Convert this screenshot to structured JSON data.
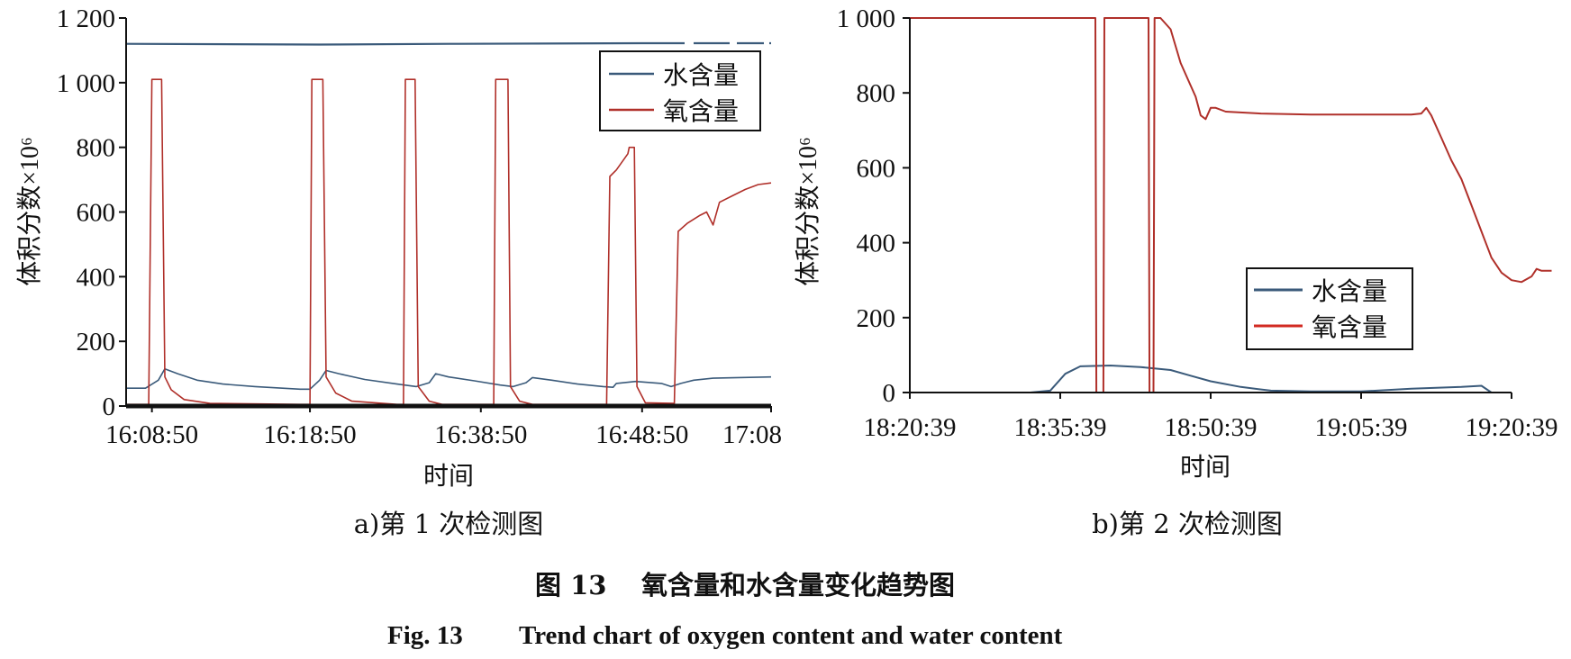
{
  "figure": {
    "caption_cn_num": "图 13",
    "caption_cn_text": "氧含量和水含量变化趋势图",
    "caption_en_num": "Fig. 13",
    "caption_en_text": "Trend chart of oxygen content and water content"
  },
  "colors": {
    "water": "#3a5a7a",
    "oxygen": "#b0302a",
    "axis": "#111111"
  },
  "chart_data": [
    {
      "type": "line",
      "subcaption": "a)第 1 次检测图",
      "xlabel": "时间",
      "ylabel": "体积分数×10⁶",
      "ylim": [
        0,
        1200
      ],
      "yticks": [
        0,
        200,
        400,
        600,
        800,
        1000,
        1200
      ],
      "ytick_labels": [
        "0",
        "200",
        "400",
        "600",
        "800",
        "1 000",
        "1 200"
      ],
      "xlim": [
        0,
        100
      ],
      "xtick_labels": [
        "16:08:50",
        "16:18:50",
        "16:38:50",
        "16:48:50",
        "17:08"
      ],
      "xtick_positions": [
        4,
        28.5,
        55,
        80,
        100
      ],
      "legend": {
        "placement": "top-right",
        "entries": [
          "水含量",
          "氧含量"
        ]
      },
      "series": [
        {
          "name": "水含量",
          "color_key": "water",
          "points": [
            [
              0,
              55
            ],
            [
              3,
              55
            ],
            [
              5,
              80
            ],
            [
              6,
              115
            ],
            [
              8,
              100
            ],
            [
              11,
              80
            ],
            [
              15,
              68
            ],
            [
              20,
              60
            ],
            [
              27,
              52
            ],
            [
              28.5,
              52
            ],
            [
              30,
              80
            ],
            [
              31,
              110
            ],
            [
              33,
              100
            ],
            [
              37,
              82
            ],
            [
              42,
              68
            ],
            [
              45,
              60
            ],
            [
              47,
              72
            ],
            [
              48,
              100
            ],
            [
              50,
              90
            ],
            [
              54,
              78
            ],
            [
              58,
              65
            ],
            [
              60,
              60
            ],
            [
              62,
              72
            ],
            [
              63,
              88
            ],
            [
              66,
              80
            ],
            [
              70,
              68
            ],
            [
              74,
              60
            ],
            [
              75.5,
              58
            ],
            [
              76,
              70
            ],
            [
              79,
              76
            ],
            [
              83,
              70
            ],
            [
              84.5,
              60
            ],
            [
              86,
              70
            ],
            [
              88,
              80
            ],
            [
              91,
              86
            ],
            [
              95,
              88
            ],
            [
              100,
              90
            ]
          ]
        },
        {
          "name": "氧含量",
          "color_key": "oxygen",
          "points": [
            [
              0,
              5
            ],
            [
              3.5,
              5
            ],
            [
              4,
              1010
            ],
            [
              5.5,
              1010
            ],
            [
              6,
              90
            ],
            [
              7,
              50
            ],
            [
              9,
              20
            ],
            [
              13,
              8
            ],
            [
              27,
              5
            ],
            [
              28.5,
              5
            ],
            [
              28.8,
              1010
            ],
            [
              30.5,
              1010
            ],
            [
              31,
              90
            ],
            [
              32.5,
              40
            ],
            [
              35,
              15
            ],
            [
              42,
              5
            ],
            [
              43,
              5
            ],
            [
              43.3,
              1010
            ],
            [
              44.8,
              1010
            ],
            [
              45.3,
              60
            ],
            [
              47,
              15
            ],
            [
              49,
              5
            ],
            [
              57,
              5
            ],
            [
              57.3,
              1010
            ],
            [
              59.2,
              1010
            ],
            [
              59.6,
              60
            ],
            [
              61,
              15
            ],
            [
              63,
              5
            ],
            [
              74.5,
              5
            ],
            [
              75,
              710
            ],
            [
              76,
              730
            ],
            [
              77.8,
              780
            ],
            [
              78,
              800
            ],
            [
              78.8,
              800
            ],
            [
              79.2,
              60
            ],
            [
              80.5,
              10
            ],
            [
              85,
              8
            ],
            [
              85.6,
              540
            ],
            [
              87,
              565
            ],
            [
              89,
              590
            ],
            [
              90,
              600
            ],
            [
              91,
              560
            ],
            [
              92,
              630
            ],
            [
              94,
              650
            ],
            [
              96,
              670
            ],
            [
              98,
              685
            ],
            [
              100,
              690
            ]
          ]
        },
        {
          "name": "",
          "color_key": "water",
          "note": "reference line near top",
          "points": [
            [
              0,
              1120
            ],
            [
              30,
              1118
            ],
            [
              50,
              1120
            ],
            [
              80,
              1122
            ],
            [
              100,
              1122
            ]
          ]
        }
      ]
    },
    {
      "type": "line",
      "subcaption": "b)第 2 次检测图",
      "xlabel": "时间",
      "ylabel": "体积分数×10⁶",
      "ylim": [
        0,
        1000
      ],
      "yticks": [
        0,
        200,
        400,
        600,
        800,
        1000
      ],
      "ytick_labels": [
        "0",
        "200",
        "400",
        "600",
        "800",
        "1 000"
      ],
      "xlim": [
        0,
        60
      ],
      "xtick_labels": [
        "18:20:39",
        "18:35:39",
        "18:50:39",
        "19:05:39",
        "19:20:39"
      ],
      "xtick_positions": [
        0,
        15,
        30,
        45,
        60
      ],
      "legend": {
        "placement": "bottom-right",
        "entries": [
          "水含量",
          "氧含量"
        ]
      },
      "series": [
        {
          "name": "水含量",
          "color_key": "water",
          "points": [
            [
              0,
              0
            ],
            [
              12,
              0
            ],
            [
              14,
              5
            ],
            [
              15.5,
              50
            ],
            [
              17,
              70
            ],
            [
              20,
              72
            ],
            [
              23,
              68
            ],
            [
              26,
              60
            ],
            [
              28,
              45
            ],
            [
              30,
              30
            ],
            [
              33,
              15
            ],
            [
              36,
              5
            ],
            [
              40,
              3
            ],
            [
              45,
              3
            ],
            [
              50,
              10
            ],
            [
              55,
              15
            ],
            [
              57,
              18
            ],
            [
              58,
              0
            ]
          ]
        },
        {
          "name": "氧含量",
          "color_key": "oxygen",
          "points": [
            [
              0,
              1000
            ],
            [
              18.5,
              1000
            ],
            [
              18.6,
              0
            ],
            [
              19.3,
              0
            ],
            [
              19.4,
              1000
            ],
            [
              23.8,
              1000
            ],
            [
              23.9,
              0
            ],
            [
              24.3,
              0
            ],
            [
              24.4,
              1000
            ],
            [
              25,
              1000
            ],
            [
              26,
              970
            ],
            [
              27,
              880
            ],
            [
              28,
              820
            ],
            [
              28.5,
              790
            ],
            [
              29,
              740
            ],
            [
              29.5,
              730
            ],
            [
              30,
              760
            ],
            [
              30.5,
              760
            ],
            [
              31.5,
              750
            ],
            [
              35,
              745
            ],
            [
              40,
              742
            ],
            [
              45,
              742
            ],
            [
              50,
              742
            ],
            [
              51,
              745
            ],
            [
              51.5,
              760
            ],
            [
              52,
              740
            ],
            [
              53,
              680
            ],
            [
              54,
              620
            ],
            [
              55,
              570
            ],
            [
              56,
              500
            ],
            [
              57,
              430
            ],
            [
              58,
              360
            ],
            [
              59,
              320
            ],
            [
              60,
              300
            ],
            [
              61,
              295
            ],
            [
              62,
              310
            ],
            [
              62.5,
              330
            ],
            [
              63,
              325
            ],
            [
              64,
              325
            ]
          ]
        }
      ]
    }
  ]
}
